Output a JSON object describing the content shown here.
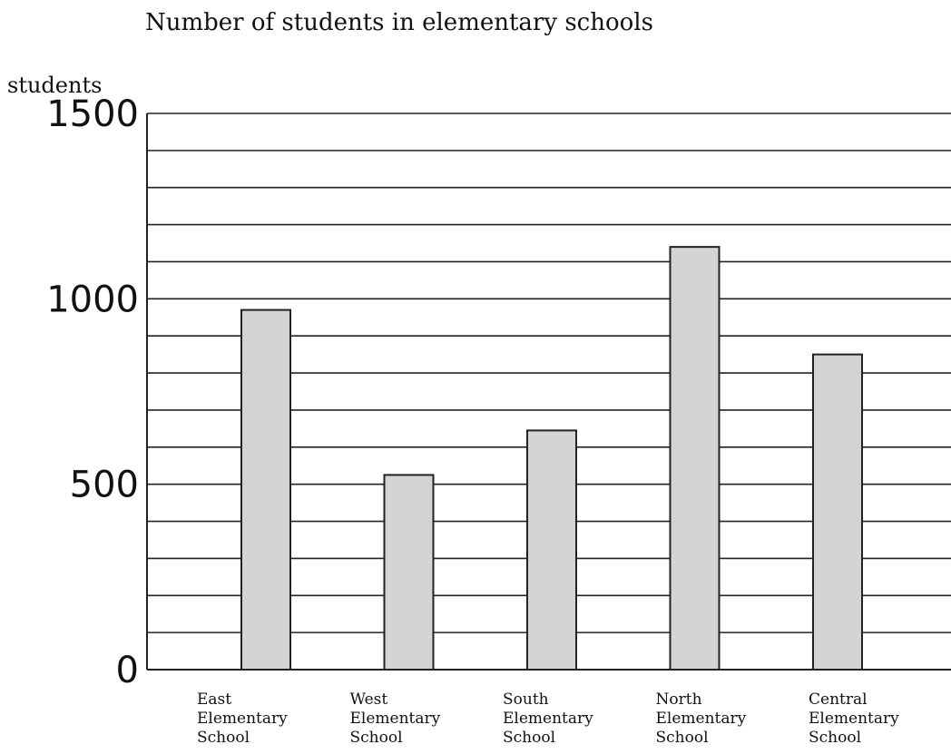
{
  "chart_data": {
    "type": "bar",
    "title": "Number of students in elementary schools",
    "ylabel": "students",
    "xlabel": "",
    "categories": [
      [
        "East",
        "Elementary",
        "School"
      ],
      [
        "West",
        "Elementary",
        "School"
      ],
      [
        "South",
        "Elementary",
        "School"
      ],
      [
        "North",
        "Elementary",
        "School"
      ],
      [
        "Central",
        "Elementary",
        "School"
      ]
    ],
    "values": [
      970,
      525,
      645,
      1140,
      850
    ],
    "ylim": [
      0,
      1500
    ],
    "yticks": [
      0,
      500,
      1000,
      1500
    ],
    "gridlines_step": 100,
    "grid": true,
    "colors": {
      "bar": "#d3d4d6",
      "stroke": "#222222"
    }
  }
}
